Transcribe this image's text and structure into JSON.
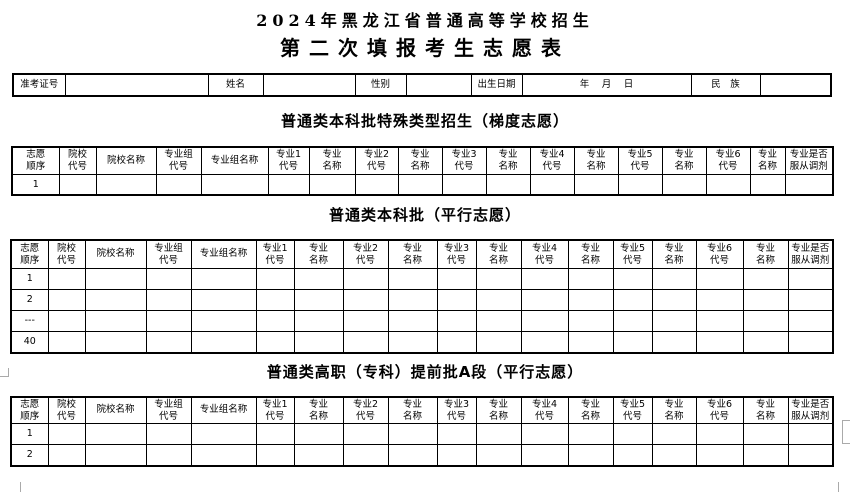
{
  "title_line1": "2024年黑龙江省普通高等学校招生",
  "title_line2": "第二次填报考生志愿表",
  "info_row": [
    "准考证号",
    "",
    "姓名",
    "",
    "性别",
    "",
    "出生日期",
    "年　 月　 日",
    "民　族",
    ""
  ],
  "columns": [
    "志愿顺序",
    "院校代号",
    "院校名称",
    "专业组代号",
    "专业组名称",
    "专业1代号",
    "专业名称",
    "专业2代号",
    "专业名称",
    "专业3代号",
    "专业名称",
    "专业4代号",
    "专业名称",
    "专业5代号",
    "专业名称",
    "专业6代号",
    "专业名称",
    "专业是否服从调剂"
  ],
  "sections": [
    {
      "title": "普通类本科批特殊类型招生（梯度志愿）",
      "rows": [
        "1"
      ]
    },
    {
      "title": "普通类本科批（平行志愿）",
      "rows": [
        "1",
        "2",
        "---",
        "40"
      ]
    },
    {
      "title": "普通类高职（专科）提前批A段（平行志愿）",
      "rows": [
        "1",
        "2"
      ]
    }
  ]
}
